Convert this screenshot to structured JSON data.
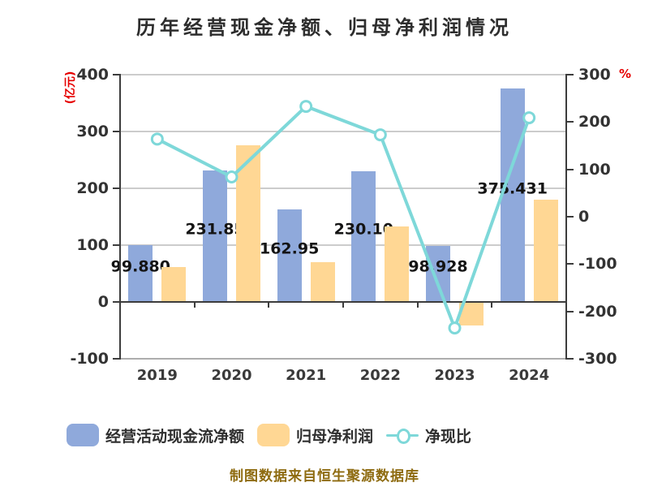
{
  "chart_data": {
    "type": "combo-bar-line",
    "title": "历年经营现金净额、归母净利润情况",
    "categories": [
      "2019",
      "2020",
      "2021",
      "2022",
      "2023",
      "2024"
    ],
    "series": [
      {
        "name": "经营活动现金流净额",
        "type": "bar",
        "yaxis": "left",
        "color": "#8fa9db",
        "values": [
          99.88,
          231.85,
          162.95,
          230.1,
          98.928,
          375.431
        ],
        "labels": [
          "99.880",
          "231.85",
          "162.95",
          "230.10",
          "98.928",
          "375.431"
        ]
      },
      {
        "name": "归母净利润",
        "type": "bar",
        "yaxis": "left",
        "color": "#ffd794",
        "values": [
          61,
          276,
          70,
          133,
          -42,
          180
        ]
      },
      {
        "name": "净现比",
        "type": "line",
        "yaxis": "right",
        "unit": "%",
        "color": "#7ed8d9",
        "marker_fill": "#ffffff",
        "values": [
          164,
          84,
          233,
          173,
          -235,
          209
        ]
      }
    ],
    "axes": {
      "left": {
        "name": "(亿元)",
        "name_color": "#e60000",
        "max": 400,
        "min": -100,
        "ticks": [
          400,
          300,
          200,
          100,
          0,
          -100
        ]
      },
      "right": {
        "name": "%",
        "name_color": "#e60000",
        "max": 300,
        "min": -300,
        "ticks": [
          300,
          200,
          100,
          0,
          -100,
          -200,
          -300
        ]
      }
    },
    "grid": true,
    "legend_position": "bottom"
  },
  "footer": {
    "text": "制图数据来自恒生聚源数据库"
  }
}
